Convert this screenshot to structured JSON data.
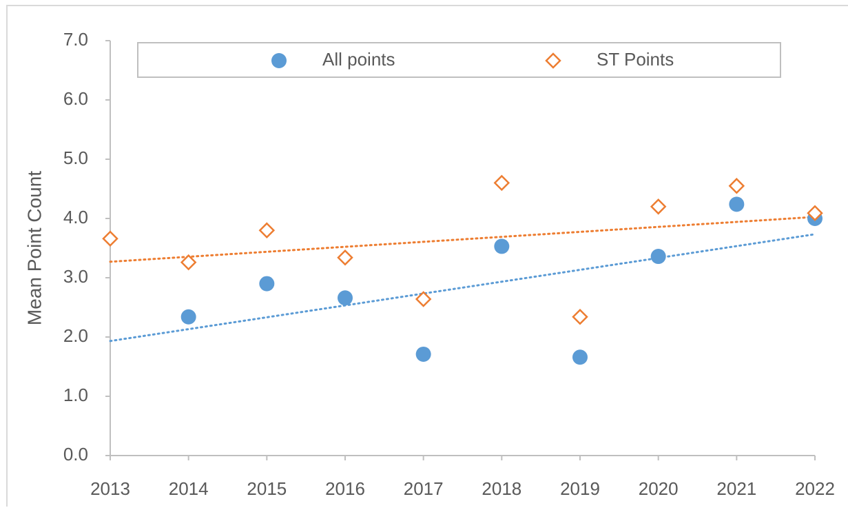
{
  "chart_data": {
    "type": "scatter",
    "y_label": "Mean Point Count",
    "x": [
      2013,
      2014,
      2015,
      2016,
      2017,
      2018,
      2019,
      2020,
      2021,
      2022
    ],
    "series": [
      {
        "name": "All points",
        "color": "#5b9bd5",
        "marker": "circle",
        "trendline": "linear",
        "values": [
          null,
          2.34,
          2.9,
          2.66,
          1.71,
          3.53,
          1.66,
          3.36,
          4.24,
          4.0
        ]
      },
      {
        "name": "ST Points",
        "color": "#ed7d31",
        "marker": "diamond",
        "trendline": "linear",
        "values": [
          3.66,
          3.26,
          3.8,
          3.34,
          2.64,
          4.6,
          2.34,
          4.2,
          4.55,
          4.09
        ]
      }
    ],
    "xlim": [
      2013,
      2022
    ],
    "xticks": [
      2013,
      2014,
      2015,
      2016,
      2017,
      2018,
      2019,
      2020,
      2021,
      2022
    ],
    "ylim": [
      0,
      7
    ],
    "yticks": [
      {
        "value": 0,
        "label": "0.0"
      },
      {
        "value": 1,
        "label": "1.0"
      },
      {
        "value": 2,
        "label": "2.0"
      },
      {
        "value": 3,
        "label": "3.0"
      },
      {
        "value": 4,
        "label": "4.0"
      },
      {
        "value": 5,
        "label": "5.0"
      },
      {
        "value": 6,
        "label": "6.0"
      },
      {
        "value": 7,
        "label": "7.0"
      }
    ],
    "grid": false,
    "legend": "top"
  }
}
